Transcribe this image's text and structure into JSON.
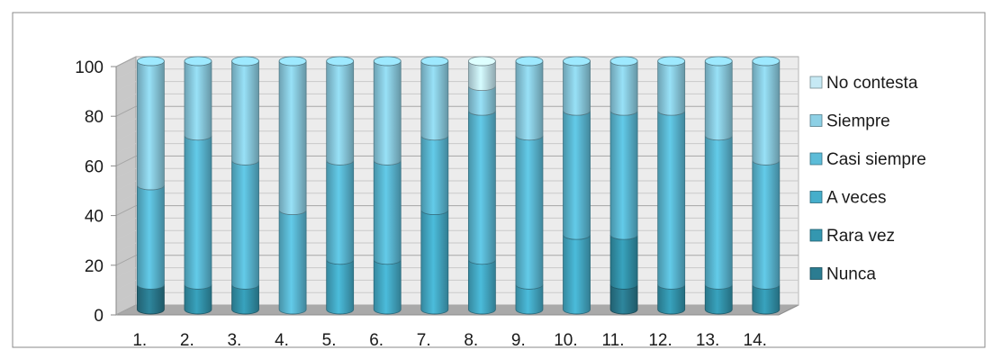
{
  "chart_data": {
    "type": "bar",
    "stacked": true,
    "three_d": true,
    "categories": [
      "1.",
      "2.",
      "3.",
      "4.",
      "5.",
      "6.",
      "7.",
      "8.",
      "9.",
      "10.",
      "11.",
      "12.",
      "13.",
      "14."
    ],
    "series": [
      {
        "name": "Nunca",
        "color": "#2b7c91",
        "values": [
          10,
          0,
          0,
          0,
          0,
          0,
          0,
          0,
          0,
          0,
          10,
          0,
          0,
          0
        ]
      },
      {
        "name": "Rara vez",
        "color": "#3497b0",
        "values": [
          0,
          10,
          10,
          0,
          0,
          0,
          0,
          0,
          0,
          0,
          20,
          10,
          10,
          10
        ]
      },
      {
        "name": "A veces",
        "color": "#45aecb",
        "values": [
          0,
          0,
          0,
          0,
          20,
          20,
          40,
          20,
          10,
          30,
          0,
          0,
          0,
          0
        ]
      },
      {
        "name": "Casi siempre",
        "color": "#5cbcd8",
        "values": [
          40,
          60,
          50,
          40,
          40,
          40,
          30,
          60,
          60,
          50,
          50,
          70,
          60,
          50
        ]
      },
      {
        "name": "Siempre",
        "color": "#8dd0e5",
        "values": [
          50,
          30,
          40,
          60,
          40,
          40,
          30,
          10,
          30,
          20,
          20,
          20,
          30,
          40
        ]
      },
      {
        "name": "No contesta",
        "color": "#c6e9f4",
        "values": [
          0,
          0,
          0,
          0,
          0,
          0,
          0,
          10,
          0,
          0,
          0,
          0,
          0,
          0
        ]
      }
    ],
    "y_ticks": [
      "0",
      "20",
      "40",
      "60",
      "80",
      "100"
    ],
    "ylim": [
      0,
      100
    ],
    "grid": true,
    "legend_position": "right",
    "title": "",
    "xlabel": "",
    "ylabel": ""
  }
}
